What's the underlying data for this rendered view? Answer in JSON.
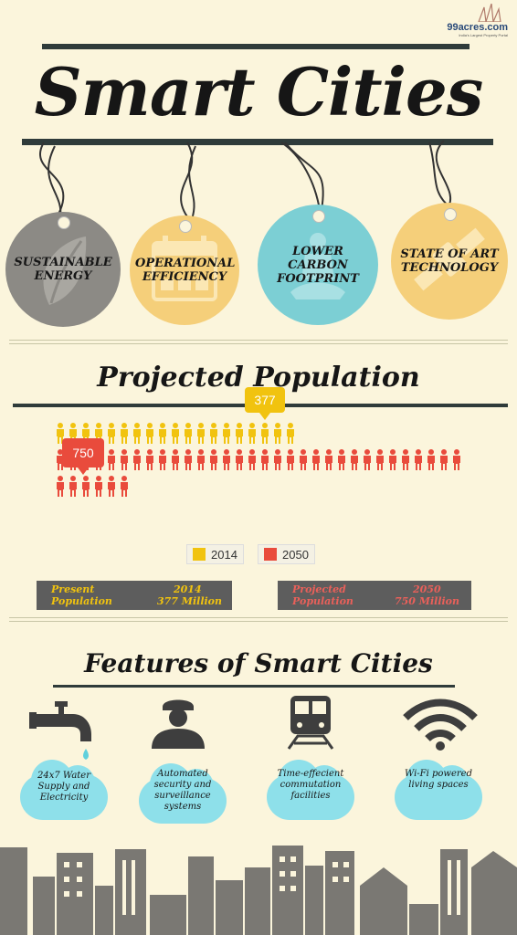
{
  "logo": {
    "text": "99acres.com",
    "subtitle": "India's Largest Property Portal"
  },
  "header": {
    "title": "Smart Cities"
  },
  "tags": [
    {
      "label": "SUSTAINABLE ENERGY",
      "color": "#8c8a85",
      "icon": "leaf-icon"
    },
    {
      "label": "OPERATIONAL EFFICIENCY",
      "color": "#f5cf7a",
      "icon": "calendar-icon"
    },
    {
      "label": "LOWER CARBON FOOTPRINT",
      "color": "#7ccfd4",
      "icon": "meditation-icon"
    },
    {
      "label": "STATE OF ART TECHNOLOGY",
      "color": "#f5cf7a",
      "icon": "satellite-icon"
    }
  ],
  "population": {
    "title": "Projected Population",
    "callout_2014": "377",
    "callout_2050": "750",
    "legend": [
      {
        "label": "2014",
        "color": "#f1c30f"
      },
      {
        "label": "2050",
        "color": "#e94b3c"
      }
    ],
    "present": {
      "label": "Present Population",
      "year": "2014",
      "value": "377 Million"
    },
    "projected": {
      "label": "Projected Population",
      "year": "2050",
      "value": "750 Million"
    }
  },
  "chart_data": {
    "type": "bar",
    "categories": [
      "2014",
      "2050"
    ],
    "values": [
      377,
      750
    ],
    "ylabel": ""
  },
  "features": {
    "title": "Features of Smart Cities",
    "items": [
      {
        "label": "24x7 Water Supply and Electricity",
        "icon": "water-tap-icon"
      },
      {
        "label": "Automated security and surveillance systems",
        "icon": "security-guard-icon"
      },
      {
        "label": "Time-effecient commutation facilities",
        "icon": "train-icon"
      },
      {
        "label": "Wi-Fi powered living spaces",
        "icon": "wifi-icon"
      }
    ]
  }
}
